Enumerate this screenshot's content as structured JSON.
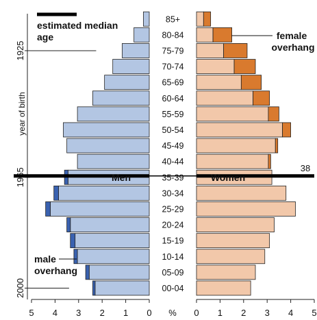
{
  "chart_data": {
    "type": "bar",
    "categories": [
      "00-04",
      "05-09",
      "10-14",
      "15-19",
      "20-24",
      "25-29",
      "30-34",
      "35-39",
      "40-44",
      "45-49",
      "50-54",
      "55-59",
      "60-64",
      "65-69",
      "70-74",
      "75-79",
      "80-84",
      "85+"
    ],
    "series": [
      {
        "name": "Men",
        "values": [
          2.3,
          2.55,
          3.05,
          3.15,
          3.35,
          4.2,
          3.85,
          3.45,
          3.05,
          3.5,
          3.65,
          3.05,
          2.4,
          1.9,
          1.55,
          1.15,
          0.65,
          0.25
        ]
      },
      {
        "name": "male overhang",
        "values": [
          0.1,
          0.15,
          0.15,
          0.2,
          0.15,
          0.2,
          0.2,
          0.15,
          0.0,
          0.0,
          0.0,
          0.0,
          0.0,
          0.0,
          0.0,
          0.0,
          0.0,
          0.0
        ]
      },
      {
        "name": "Women",
        "values": [
          2.3,
          2.5,
          2.9,
          3.1,
          3.3,
          4.2,
          3.8,
          3.2,
          3.05,
          3.35,
          3.65,
          3.05,
          2.4,
          1.9,
          1.6,
          1.15,
          0.7,
          0.3
        ]
      },
      {
        "name": "female overhang",
        "values": [
          0.0,
          0.0,
          0.0,
          0.0,
          0.0,
          0.0,
          0.0,
          0.0,
          0.1,
          0.1,
          0.35,
          0.45,
          0.7,
          0.85,
          0.9,
          1.0,
          0.8,
          0.3
        ]
      }
    ],
    "x_ticks_left": [
      "5",
      "4",
      "3",
      "2",
      "1",
      "0"
    ],
    "x_ticks_right": [
      "0",
      "1",
      "2",
      "3",
      "4",
      "5"
    ],
    "x_unit_label": "%",
    "xlim": [
      0,
      5
    ],
    "y_axis_title": "year of birth",
    "year_labels": [
      {
        "text": "1925",
        "age_group": "75-79"
      },
      {
        "text": "1965",
        "age_group": "35-39"
      },
      {
        "text": "2000",
        "age_group": "00-04"
      }
    ],
    "median_age": {
      "value": 38,
      "age_group": "35-39",
      "label": "38"
    },
    "labels": {
      "men": "Men",
      "women": "Women",
      "legend_median": "estimated median age",
      "female_overhang": "female overhang",
      "male_overhang": "male overhang"
    },
    "colors": {
      "men": "#b3c6e3",
      "male_overhang": "#3a62b0",
      "women": "#f2c8aa",
      "female_overhang": "#d97a2e",
      "outline": "#222222",
      "median_line": "#000000"
    }
  }
}
